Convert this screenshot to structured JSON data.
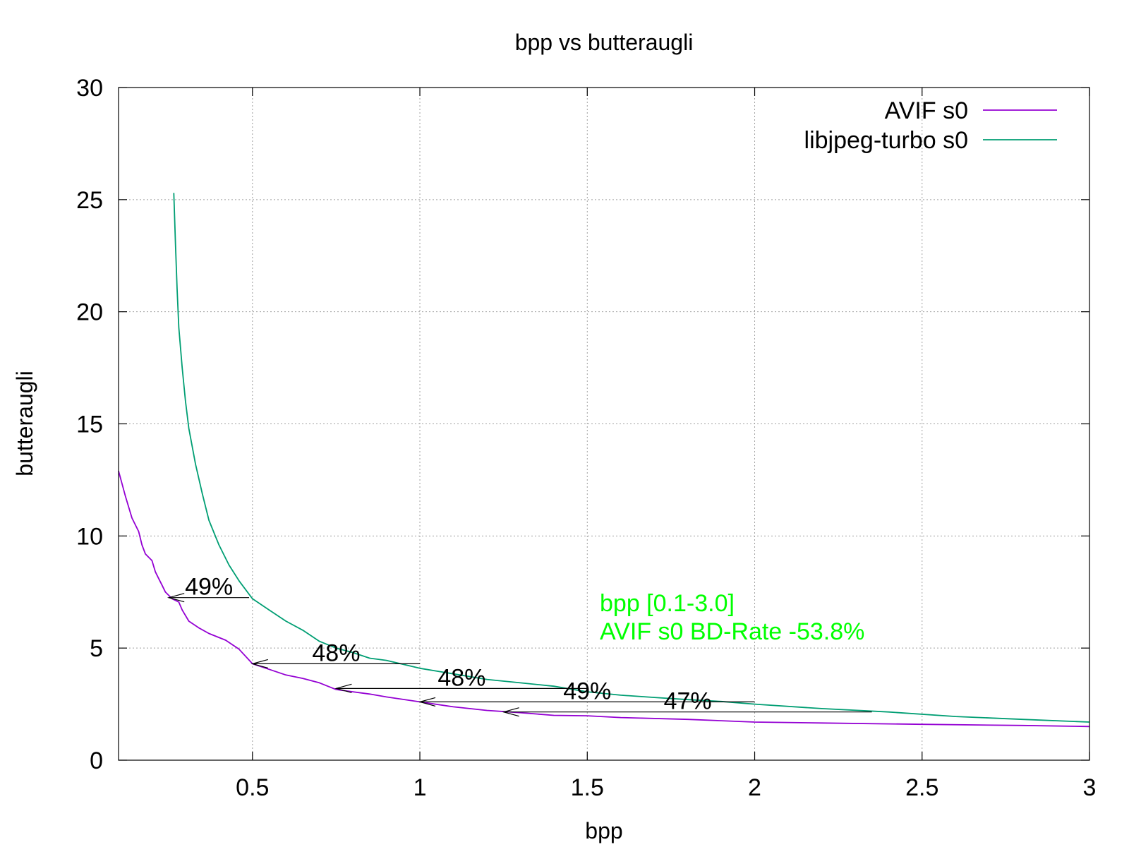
{
  "chart_data": {
    "type": "line",
    "title": "bpp vs butteraugli",
    "xlabel": "bpp",
    "ylabel": "butteraugli",
    "xlim": [
      0.1,
      3.0
    ],
    "ylim": [
      0,
      30
    ],
    "grid": true,
    "legend_position": "top-right",
    "x_ticks": [
      {
        "value": 0.5,
        "label": "0.5"
      },
      {
        "value": 1,
        "label": "1"
      },
      {
        "value": 1.5,
        "label": "1.5"
      },
      {
        "value": 2,
        "label": "2"
      },
      {
        "value": 2.5,
        "label": "2.5"
      },
      {
        "value": 3,
        "label": "3"
      }
    ],
    "y_ticks": [
      {
        "value": 0,
        "label": "0"
      },
      {
        "value": 5,
        "label": "5"
      },
      {
        "value": 10,
        "label": "10"
      },
      {
        "value": 15,
        "label": "15"
      },
      {
        "value": 20,
        "label": "20"
      },
      {
        "value": 25,
        "label": "25"
      },
      {
        "value": 30,
        "label": "30"
      }
    ],
    "series": [
      {
        "name": "AVIF s0",
        "color": "#9400d3",
        "points": [
          [
            0.1,
            12.9
          ],
          [
            0.12,
            11.8
          ],
          [
            0.14,
            10.8
          ],
          [
            0.16,
            10.2
          ],
          [
            0.17,
            9.6
          ],
          [
            0.18,
            9.2
          ],
          [
            0.2,
            8.9
          ],
          [
            0.21,
            8.4
          ],
          [
            0.22,
            8.1
          ],
          [
            0.23,
            7.8
          ],
          [
            0.24,
            7.5
          ],
          [
            0.26,
            7.2
          ],
          [
            0.28,
            7.05
          ],
          [
            0.29,
            6.7
          ],
          [
            0.31,
            6.2
          ],
          [
            0.34,
            5.9
          ],
          [
            0.37,
            5.65
          ],
          [
            0.42,
            5.35
          ],
          [
            0.46,
            4.95
          ],
          [
            0.5,
            4.3
          ],
          [
            0.55,
            4.05
          ],
          [
            0.6,
            3.8
          ],
          [
            0.65,
            3.65
          ],
          [
            0.7,
            3.45
          ],
          [
            0.75,
            3.15
          ],
          [
            0.8,
            3.05
          ],
          [
            0.85,
            2.95
          ],
          [
            0.9,
            2.82
          ],
          [
            1.0,
            2.6
          ],
          [
            1.1,
            2.38
          ],
          [
            1.2,
            2.22
          ],
          [
            1.3,
            2.12
          ],
          [
            1.4,
            2.0
          ],
          [
            1.5,
            1.98
          ],
          [
            1.6,
            1.9
          ],
          [
            1.8,
            1.82
          ],
          [
            2.0,
            1.7
          ],
          [
            2.2,
            1.66
          ],
          [
            2.5,
            1.6
          ],
          [
            2.8,
            1.55
          ],
          [
            3.0,
            1.5
          ]
        ]
      },
      {
        "name": "libjpeg-turbo s0",
        "color": "#009e73",
        "points": [
          [
            0.265,
            25.3
          ],
          [
            0.27,
            23.0
          ],
          [
            0.275,
            21.0
          ],
          [
            0.28,
            19.3
          ],
          [
            0.29,
            17.5
          ],
          [
            0.3,
            16.0
          ],
          [
            0.31,
            14.8
          ],
          [
            0.33,
            13.2
          ],
          [
            0.35,
            11.9
          ],
          [
            0.37,
            10.7
          ],
          [
            0.4,
            9.6
          ],
          [
            0.43,
            8.7
          ],
          [
            0.46,
            8.0
          ],
          [
            0.5,
            7.2
          ],
          [
            0.55,
            6.7
          ],
          [
            0.6,
            6.2
          ],
          [
            0.65,
            5.8
          ],
          [
            0.7,
            5.3
          ],
          [
            0.75,
            5.0
          ],
          [
            0.8,
            4.8
          ],
          [
            0.85,
            4.55
          ],
          [
            0.9,
            4.45
          ],
          [
            1.0,
            4.1
          ],
          [
            1.1,
            3.85
          ],
          [
            1.2,
            3.6
          ],
          [
            1.3,
            3.45
          ],
          [
            1.4,
            3.3
          ],
          [
            1.5,
            3.05
          ],
          [
            1.6,
            2.9
          ],
          [
            1.7,
            2.8
          ],
          [
            1.8,
            2.7
          ],
          [
            1.9,
            2.62
          ],
          [
            2.0,
            2.5
          ],
          [
            2.2,
            2.3
          ],
          [
            2.4,
            2.15
          ],
          [
            2.6,
            1.95
          ],
          [
            2.8,
            1.82
          ],
          [
            3.0,
            1.7
          ]
        ]
      }
    ],
    "callouts": [
      {
        "label": "49%",
        "y": 7.25,
        "x_from": 0.49,
        "x_to": 0.25
      },
      {
        "label": "48%",
        "y": 4.3,
        "x_from": 1.0,
        "x_to": 0.5
      },
      {
        "label": "48%",
        "y": 3.2,
        "x_from": 1.5,
        "x_to": 0.75
      },
      {
        "label": "49%",
        "y": 2.6,
        "x_from": 2.0,
        "x_to": 1.0
      },
      {
        "label": "47%",
        "y": 2.15,
        "x_from": 2.35,
        "x_to": 1.25
      }
    ],
    "annotation": {
      "lines": [
        "bpp [0.1-3.0]",
        "AVIF s0 BD-Rate -53.8%"
      ],
      "color": "#00ff00"
    }
  }
}
